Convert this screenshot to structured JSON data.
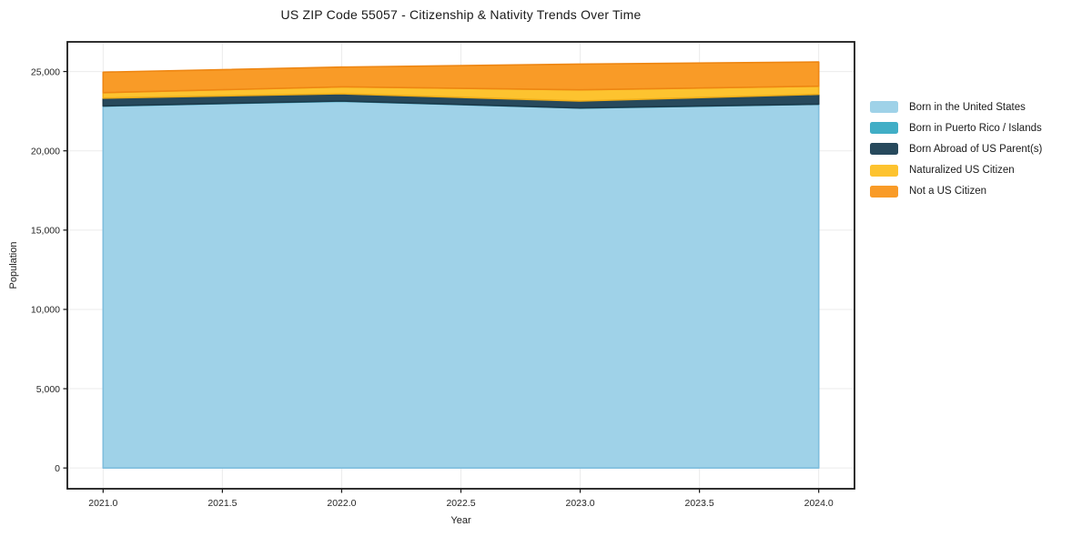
{
  "title": "US ZIP Code 55057 - Citizenship & Nativity Trends Over Time",
  "chart_data": {
    "type": "area",
    "stacked": true,
    "title": "US ZIP Code 55057 - Citizenship & Nativity Trends Over Time",
    "xlabel": "Year",
    "ylabel": "Population",
    "x": [
      2021,
      2022,
      2023,
      2024
    ],
    "series": [
      {
        "name": "Born in the United States",
        "values": [
          22820,
          23125,
          22690,
          22935
        ],
        "fill": "#9fd2e8",
        "edge": "#7fbedd"
      },
      {
        "name": "Born in Puerto Rico / Islands",
        "values": [
          12,
          12,
          12,
          12
        ],
        "fill": "#41aec6",
        "edge": "#2f99b1"
      },
      {
        "name": "Born Abroad of US Parent(s)",
        "values": [
          490,
          460,
          435,
          615
        ],
        "fill": "#27495c",
        "edge": "#1c3a4a"
      },
      {
        "name": "Naturalized US Citizen",
        "values": [
          345,
          440,
          710,
          515
        ],
        "fill": "#fdc32f",
        "edge": "#f0ad17"
      },
      {
        "name": "Not a US Citizen",
        "values": [
          1290,
          1245,
          1625,
          1525
        ],
        "fill": "#f99b27",
        "edge": "#ee8612"
      }
    ],
    "x_ticks": [
      2021.0,
      2021.5,
      2022.0,
      2022.5,
      2023.0,
      2023.5,
      2024.0
    ],
    "x_tick_labels": [
      "2021.0",
      "2021.5",
      "2022.0",
      "2022.5",
      "2023.0",
      "2023.5",
      "2024.0"
    ],
    "y_ticks": [
      0,
      5000,
      10000,
      15000,
      20000,
      25000
    ],
    "y_tick_labels": [
      "0",
      "5,000",
      "10,000",
      "15,000",
      "20,000",
      "25,000"
    ],
    "xlim": [
      2020.85,
      2024.15
    ],
    "ylim": [
      -1310,
      26870
    ],
    "grid": true,
    "legend_position": "right outside"
  }
}
